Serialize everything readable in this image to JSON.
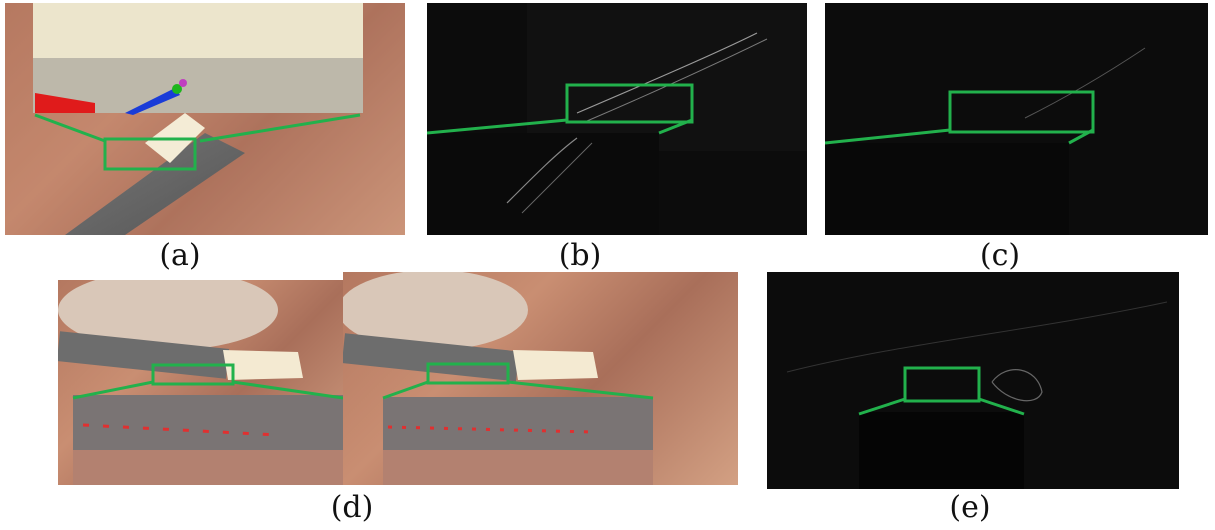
{
  "figure": {
    "panels": [
      {
        "id": "a",
        "caption": "(a)"
      },
      {
        "id": "b",
        "caption": "(b)"
      },
      {
        "id": "c",
        "caption": "(c)"
      },
      {
        "id": "d",
        "caption": "(d)"
      },
      {
        "id": "e",
        "caption": "(e)"
      }
    ],
    "colors": {
      "highlight": "#22b14c",
      "marker": "#e03030"
    }
  }
}
